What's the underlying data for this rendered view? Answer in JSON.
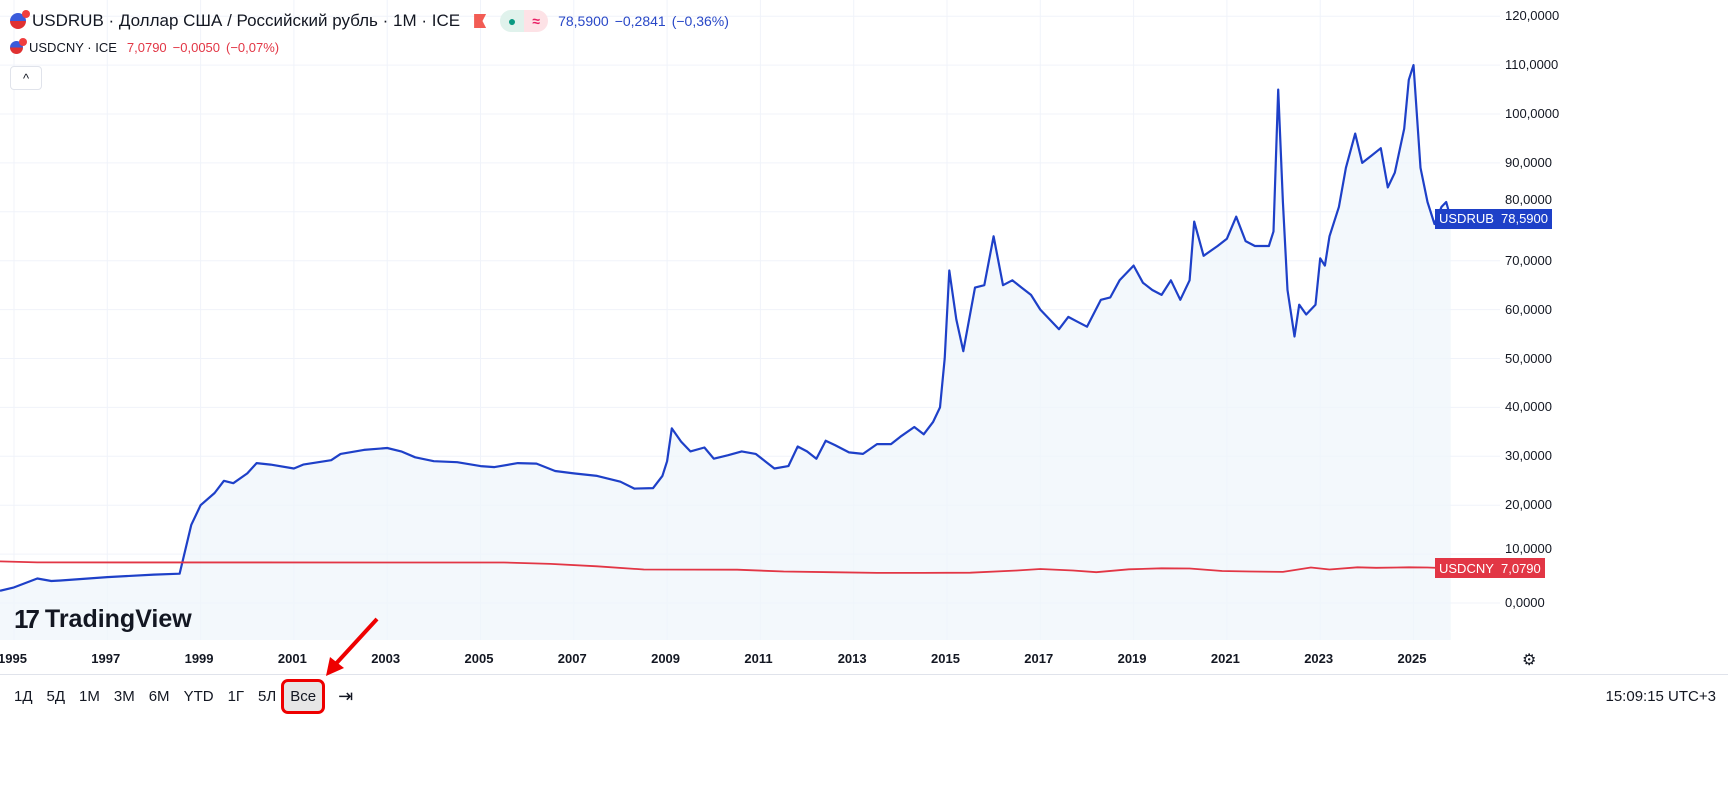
{
  "legend": {
    "main": {
      "symbol": "USDRUB · Доллар США / Российский рубль · 1M · ICE",
      "price": "78,5900",
      "change": "−0,2841",
      "change_pct": "(−0,36%)",
      "pill_dot": "●",
      "pill_approx": "≈"
    },
    "compare": {
      "symbol": "USDCNY · ICE",
      "price": "7,0790",
      "change": "−0,0050",
      "change_pct": "(−0,07%)"
    },
    "collapse": "^"
  },
  "watermark": "TradingView",
  "watermark_mark": "17",
  "time_axis": [
    "1995",
    "1997",
    "1999",
    "2001",
    "2003",
    "2005",
    "2007",
    "2009",
    "2011",
    "2013",
    "2015",
    "2017",
    "2019",
    "2021",
    "2023",
    "2025"
  ],
  "toolbar": {
    "ranges": [
      "1Д",
      "5Д",
      "1М",
      "3М",
      "6М",
      "YTD",
      "1Г",
      "5Л",
      "Все"
    ],
    "active": "Все",
    "goto_icon": "⇥",
    "clock": "15:09:15 UTC+3"
  },
  "gear_icon": "⚙",
  "chart_data": {
    "type": "line",
    "y_ticks": [
      "120,0000",
      "110,0000",
      "100,0000",
      "90,0000",
      "80,0000",
      "70,0000",
      "60,0000",
      "50,0000",
      "40,0000",
      "30,0000",
      "20,0000",
      "10,0000",
      "0,0000"
    ],
    "ylim": [
      -5,
      122
    ],
    "xlim": [
      1994.7,
      2027
    ],
    "series": [
      {
        "name": "USDRUB",
        "color": "#1e40c8",
        "last_label": "78,5900",
        "fill": true,
        "points": [
          [
            1994.7,
            2.5
          ],
          [
            1995.0,
            3.2
          ],
          [
            1995.5,
            5
          ],
          [
            1995.8,
            4.5
          ],
          [
            1996.0,
            4.6
          ],
          [
            1997.0,
            5.3
          ],
          [
            1998.0,
            5.8
          ],
          [
            1998.55,
            6.0
          ],
          [
            1998.65,
            10
          ],
          [
            1998.8,
            16
          ],
          [
            1999.0,
            20
          ],
          [
            1999.3,
            22.5
          ],
          [
            1999.5,
            25
          ],
          [
            1999.7,
            24.5
          ],
          [
            2000.0,
            26.5
          ],
          [
            2000.2,
            28.6
          ],
          [
            2000.5,
            28.3
          ],
          [
            2001.0,
            27.5
          ],
          [
            2001.2,
            28.3
          ],
          [
            2001.8,
            29.2
          ],
          [
            2002.0,
            30.5
          ],
          [
            2002.5,
            31.3
          ],
          [
            2003.0,
            31.7
          ],
          [
            2003.3,
            31
          ],
          [
            2003.6,
            29.8
          ],
          [
            2004.0,
            29
          ],
          [
            2004.5,
            28.8
          ],
          [
            2005.0,
            28
          ],
          [
            2005.3,
            27.8
          ],
          [
            2005.8,
            28.6
          ],
          [
            2006.2,
            28.5
          ],
          [
            2006.6,
            27
          ],
          [
            2007.0,
            26.5
          ],
          [
            2007.5,
            26
          ],
          [
            2008.0,
            24.8
          ],
          [
            2008.3,
            23.4
          ],
          [
            2008.7,
            23.5
          ],
          [
            2008.9,
            26
          ],
          [
            2009.0,
            29
          ],
          [
            2009.1,
            35.7
          ],
          [
            2009.3,
            33
          ],
          [
            2009.5,
            31
          ],
          [
            2009.8,
            31.8
          ],
          [
            2010.0,
            29.5
          ],
          [
            2010.3,
            30.2
          ],
          [
            2010.6,
            31
          ],
          [
            2010.9,
            30.5
          ],
          [
            2011.1,
            29
          ],
          [
            2011.3,
            27.5
          ],
          [
            2011.6,
            28
          ],
          [
            2011.8,
            32
          ],
          [
            2012.0,
            31
          ],
          [
            2012.2,
            29.5
          ],
          [
            2012.4,
            33.2
          ],
          [
            2012.6,
            32.3
          ],
          [
            2012.9,
            30.8
          ],
          [
            2013.2,
            30.5
          ],
          [
            2013.5,
            32.5
          ],
          [
            2013.8,
            32.5
          ],
          [
            2014.0,
            34
          ],
          [
            2014.3,
            36
          ],
          [
            2014.5,
            34.5
          ],
          [
            2014.7,
            37
          ],
          [
            2014.85,
            40
          ],
          [
            2014.95,
            50
          ],
          [
            2015.05,
            68
          ],
          [
            2015.2,
            58
          ],
          [
            2015.35,
            51.5
          ],
          [
            2015.6,
            64.5
          ],
          [
            2015.8,
            65
          ],
          [
            2016.0,
            75
          ],
          [
            2016.2,
            65
          ],
          [
            2016.4,
            66
          ],
          [
            2016.6,
            64.5
          ],
          [
            2016.8,
            63
          ],
          [
            2017.0,
            60
          ],
          [
            2017.4,
            56
          ],
          [
            2017.6,
            58.5
          ],
          [
            2017.8,
            57.5
          ],
          [
            2018.0,
            56.5
          ],
          [
            2018.3,
            62
          ],
          [
            2018.5,
            62.5
          ],
          [
            2018.7,
            66
          ],
          [
            2019.0,
            69
          ],
          [
            2019.2,
            65.5
          ],
          [
            2019.4,
            64
          ],
          [
            2019.6,
            63
          ],
          [
            2019.8,
            66
          ],
          [
            2020.0,
            62
          ],
          [
            2020.2,
            66
          ],
          [
            2020.3,
            78
          ],
          [
            2020.5,
            71
          ],
          [
            2020.8,
            73
          ],
          [
            2021.0,
            74.5
          ],
          [
            2021.2,
            79
          ],
          [
            2021.4,
            74
          ],
          [
            2021.6,
            73
          ],
          [
            2021.9,
            73
          ],
          [
            2022.0,
            76
          ],
          [
            2022.1,
            105
          ],
          [
            2022.2,
            82
          ],
          [
            2022.3,
            64
          ],
          [
            2022.45,
            54.5
          ],
          [
            2022.55,
            61
          ],
          [
            2022.7,
            59
          ],
          [
            2022.9,
            61
          ],
          [
            2023.0,
            70.5
          ],
          [
            2023.1,
            69
          ],
          [
            2023.2,
            75
          ],
          [
            2023.4,
            81
          ],
          [
            2023.55,
            89
          ],
          [
            2023.75,
            96
          ],
          [
            2023.9,
            90
          ],
          [
            2024.1,
            91.5
          ],
          [
            2024.3,
            93
          ],
          [
            2024.45,
            85
          ],
          [
            2024.6,
            88
          ],
          [
            2024.8,
            97
          ],
          [
            2024.9,
            107
          ],
          [
            2025.0,
            110
          ],
          [
            2025.15,
            89
          ],
          [
            2025.3,
            82
          ],
          [
            2025.45,
            77.5
          ],
          [
            2025.6,
            81
          ],
          [
            2025.7,
            82
          ],
          [
            2025.8,
            78.59
          ]
        ]
      },
      {
        "name": "USDCNY",
        "color": "#e23645",
        "last_label": "7,0790",
        "fill": false,
        "points": [
          [
            1994.7,
            8.5
          ],
          [
            1995.5,
            8.3
          ],
          [
            2005.5,
            8.28
          ],
          [
            2006.5,
            8.0
          ],
          [
            2007.5,
            7.5
          ],
          [
            2008.5,
            6.85
          ],
          [
            2010.5,
            6.8
          ],
          [
            2011.5,
            6.45
          ],
          [
            2012.5,
            6.3
          ],
          [
            2013.5,
            6.15
          ],
          [
            2014.5,
            6.15
          ],
          [
            2015.5,
            6.2
          ],
          [
            2016.5,
            6.65
          ],
          [
            2017.0,
            6.95
          ],
          [
            2017.7,
            6.65
          ],
          [
            2018.2,
            6.3
          ],
          [
            2018.9,
            6.9
          ],
          [
            2019.6,
            7.1
          ],
          [
            2020.2,
            7.05
          ],
          [
            2020.9,
            6.55
          ],
          [
            2021.5,
            6.45
          ],
          [
            2022.2,
            6.35
          ],
          [
            2022.8,
            7.25
          ],
          [
            2023.2,
            6.85
          ],
          [
            2023.8,
            7.3
          ],
          [
            2024.2,
            7.2
          ],
          [
            2024.9,
            7.3
          ],
          [
            2025.3,
            7.25
          ],
          [
            2025.8,
            7.079
          ]
        ]
      }
    ]
  }
}
